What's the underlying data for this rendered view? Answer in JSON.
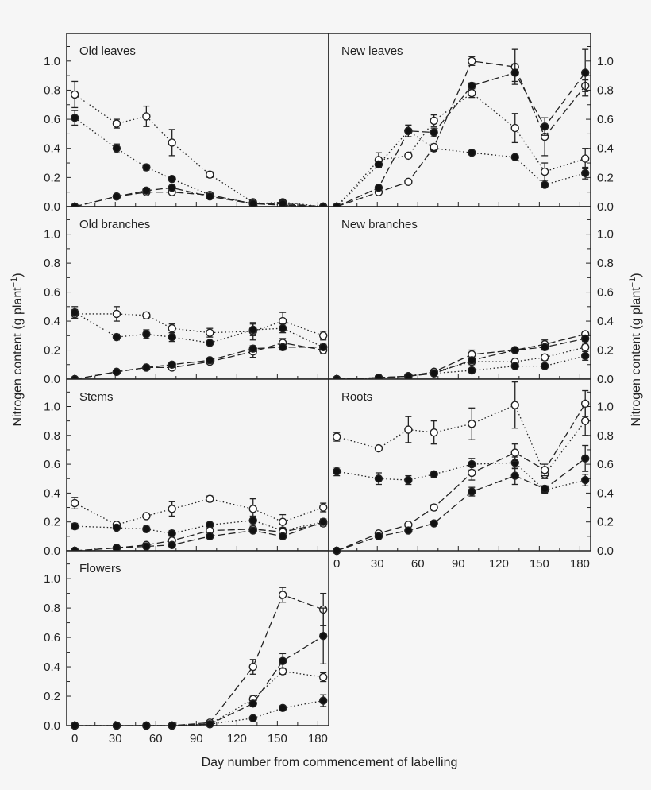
{
  "chart_data": {
    "type": "line",
    "xlabel": "Day number from commencement of labelling",
    "ylabel_main": "Nitrogen content (g plant",
    "ylabel_sup": "−1",
    "ylabel_close": ")",
    "x_ticks": [
      0,
      30,
      60,
      90,
      120,
      150,
      180
    ],
    "y_ticks": [
      "0.0",
      "0.2",
      "0.4",
      "0.6",
      "0.8",
      "1.0"
    ],
    "xlim": [
      -6,
      188
    ],
    "ylim": [
      0,
      1.19
    ],
    "grid": false,
    "series_styles": [
      {
        "marker": "open-circle",
        "line": "dotted"
      },
      {
        "marker": "filled-circle",
        "line": "dotted"
      },
      {
        "marker": "open-circle",
        "line": "dashed"
      },
      {
        "marker": "filled-circle",
        "line": "dashed"
      }
    ],
    "days": [
      0,
      31,
      53,
      72,
      100,
      132,
      154,
      184
    ],
    "panels": [
      {
        "title": "Old leaves",
        "column": "left",
        "row": 0,
        "series": [
          {
            "values": [
              0.77,
              0.57,
              0.62,
              0.44,
              0.22,
              0.03,
              0.01,
              0.0
            ],
            "err": [
              0.09,
              0.03,
              0.07,
              0.09,
              0.02,
              0,
              0,
              0
            ]
          },
          {
            "values": [
              0.61,
              0.4,
              0.27,
              0.19,
              0.08,
              0.02,
              0.03,
              0.0
            ],
            "err": [
              0.05,
              0.03,
              0.02,
              0.01,
              0.01,
              0,
              0.01,
              0
            ]
          },
          {
            "values": [
              0.0,
              0.07,
              0.1,
              0.1,
              0.08,
              0.02,
              0.01,
              0.0
            ],
            "err": [
              0,
              0,
              0,
              0,
              0,
              0,
              0,
              0
            ]
          },
          {
            "values": [
              0.0,
              0.07,
              0.11,
              0.13,
              0.07,
              0.02,
              0.02,
              0.0
            ],
            "err": [
              0,
              0,
              0.01,
              0.01,
              0,
              0,
              0,
              0
            ]
          }
        ]
      },
      {
        "title": "New leaves",
        "column": "right",
        "row": 0,
        "series": [
          {
            "values": [
              0.0,
              0.32,
              0.35,
              0.59,
              0.78,
              0.54,
              0.24,
              0.33
            ],
            "err": [
              0,
              0.05,
              0.01,
              0.04,
              0.03,
              0.1,
              0.06,
              0.07
            ]
          },
          {
            "values": [
              0.0,
              0.29,
              0.52,
              0.4,
              0.37,
              0.34,
              0.15,
              0.23
            ],
            "err": [
              0,
              0.02,
              0.04,
              0.02,
              0,
              0,
              0,
              0.04
            ]
          },
          {
            "values": [
              0.0,
              0.1,
              0.17,
              0.41,
              1.0,
              0.96,
              0.48,
              0.83
            ],
            "err": [
              0,
              0.01,
              0.01,
              0.02,
              0.03,
              0.12,
              0.13,
              0.04
            ]
          },
          {
            "values": [
              0.0,
              0.13,
              0.52,
              0.51,
              0.83,
              0.92,
              0.55,
              0.92
            ],
            "err": [
              0,
              0.01,
              0.04,
              0.03,
              0.02,
              0.06,
              0.06,
              0.16
            ]
          }
        ]
      },
      {
        "title": "Old branches",
        "column": "left",
        "row": 1,
        "series": [
          {
            "values": [
              0.45,
              0.45,
              0.44,
              0.35,
              0.32,
              0.33,
              0.4,
              0.3
            ],
            "err": [
              0.03,
              0.05,
              0.02,
              0.03,
              0.03,
              0.06,
              0.06,
              0.03
            ]
          },
          {
            "values": [
              0.46,
              0.29,
              0.31,
              0.29,
              0.25,
              0.34,
              0.35,
              0.22
            ],
            "err": [
              0.04,
              0.02,
              0.03,
              0.03,
              0.01,
              0.04,
              0.03,
              0.02
            ]
          },
          {
            "values": [
              0.0,
              0.05,
              0.08,
              0.08,
              0.12,
              0.19,
              0.25,
              0.2
            ],
            "err": [
              0,
              0,
              0,
              0.01,
              0.01,
              0.04,
              0.03,
              0.02
            ]
          },
          {
            "values": [
              0.0,
              0.05,
              0.08,
              0.1,
              0.13,
              0.21,
              0.22,
              0.22
            ],
            "err": [
              0,
              0,
              0,
              0,
              0.01,
              0.02,
              0.02,
              0.02
            ]
          }
        ]
      },
      {
        "title": "New branches",
        "column": "right",
        "row": 1,
        "series": [
          {
            "values": [
              0.0,
              0.01,
              0.02,
              0.05,
              0.12,
              0.12,
              0.15,
              0.22
            ],
            "err": [
              0,
              0,
              0,
              0,
              0.02,
              0.01,
              0.02,
              0.02
            ]
          },
          {
            "values": [
              0.0,
              0.01,
              0.02,
              0.04,
              0.06,
              0.09,
              0.09,
              0.16
            ],
            "err": [
              0,
              0,
              0,
              0,
              0.01,
              0.01,
              0.01,
              0.03
            ]
          },
          {
            "values": [
              0.0,
              0.01,
              0.02,
              0.05,
              0.17,
              0.2,
              0.24,
              0.31
            ],
            "err": [
              0,
              0,
              0,
              0.01,
              0.03,
              0.01,
              0.03,
              0.02
            ]
          },
          {
            "values": [
              0.0,
              0.01,
              0.02,
              0.04,
              0.13,
              0.2,
              0.22,
              0.28
            ],
            "err": [
              0,
              0,
              0,
              0,
              0.02,
              0.01,
              0.02,
              0.02
            ]
          }
        ]
      },
      {
        "title": "Stems",
        "column": "left",
        "row": 2,
        "series": [
          {
            "values": [
              0.33,
              0.18,
              0.24,
              0.29,
              0.36,
              0.29,
              0.2,
              0.3
            ],
            "err": [
              0.04,
              0.01,
              0.01,
              0.05,
              0.02,
              0.07,
              0.05,
              0.03
            ]
          },
          {
            "values": [
              0.17,
              0.16,
              0.15,
              0.12,
              0.18,
              0.21,
              0.14,
              0.2
            ],
            "err": [
              0.02,
              0.01,
              0.02,
              0.02,
              0.01,
              0.03,
              0.02,
              0.02
            ]
          },
          {
            "values": [
              0.0,
              0.02,
              0.04,
              0.07,
              0.14,
              0.15,
              0.13,
              0.19
            ],
            "err": [
              0,
              0,
              0,
              0.01,
              0.01,
              0.02,
              0.01,
              0.02
            ]
          },
          {
            "values": [
              0.0,
              0.02,
              0.03,
              0.04,
              0.1,
              0.14,
              0.1,
              0.2
            ],
            "err": [
              0,
              0,
              0,
              0,
              0.01,
              0.01,
              0.01,
              0.02
            ]
          }
        ]
      },
      {
        "title": "Roots",
        "column": "right",
        "row": 2,
        "series": [
          {
            "values": [
              0.79,
              0.71,
              0.84,
              0.82,
              0.88,
              1.01,
              0.53,
              0.9
            ],
            "err": [
              0.03,
              0.01,
              0.09,
              0.08,
              0.11,
              0.16,
              0.03,
              0.1
            ]
          },
          {
            "values": [
              0.55,
              0.5,
              0.49,
              0.53,
              0.6,
              0.61,
              0.42,
              0.49
            ],
            "err": [
              0.03,
              0.04,
              0.03,
              0.02,
              0.04,
              0.04,
              0.02,
              0.04
            ]
          },
          {
            "values": [
              0.0,
              0.12,
              0.18,
              0.3,
              0.54,
              0.68,
              0.56,
              1.02
            ],
            "err": [
              0,
              0.01,
              0.01,
              0.02,
              0.05,
              0.06,
              0.04,
              0.09
            ]
          },
          {
            "values": [
              0.0,
              0.1,
              0.14,
              0.19,
              0.41,
              0.52,
              0.43,
              0.64
            ],
            "err": [
              0,
              0.01,
              0.01,
              0.01,
              0.03,
              0.06,
              0.02,
              0.09
            ]
          }
        ]
      },
      {
        "title": "Flowers",
        "column": "left",
        "row": 3,
        "series": [
          {
            "values": [
              0.0,
              0.0,
              0.0,
              0.0,
              0.01,
              0.18,
              0.37,
              0.33
            ],
            "err": [
              0,
              0,
              0,
              0,
              0,
              0.02,
              0.02,
              0.03
            ]
          },
          {
            "values": [
              0.0,
              0.0,
              0.0,
              0.0,
              0.01,
              0.05,
              0.12,
              0.17
            ],
            "err": [
              0,
              0,
              0,
              0,
              0,
              0,
              0,
              0.04
            ]
          },
          {
            "values": [
              0.0,
              0.0,
              0.0,
              0.0,
              0.02,
              0.4,
              0.89,
              0.79
            ],
            "err": [
              0,
              0,
              0,
              0,
              0,
              0.05,
              0.05,
              0.11
            ]
          },
          {
            "values": [
              0.0,
              0.0,
              0.0,
              0.0,
              0.01,
              0.15,
              0.44,
              0.61
            ],
            "err": [
              0,
              0,
              0,
              0,
              0,
              0.02,
              0.05,
              0.19
            ]
          }
        ]
      }
    ]
  }
}
